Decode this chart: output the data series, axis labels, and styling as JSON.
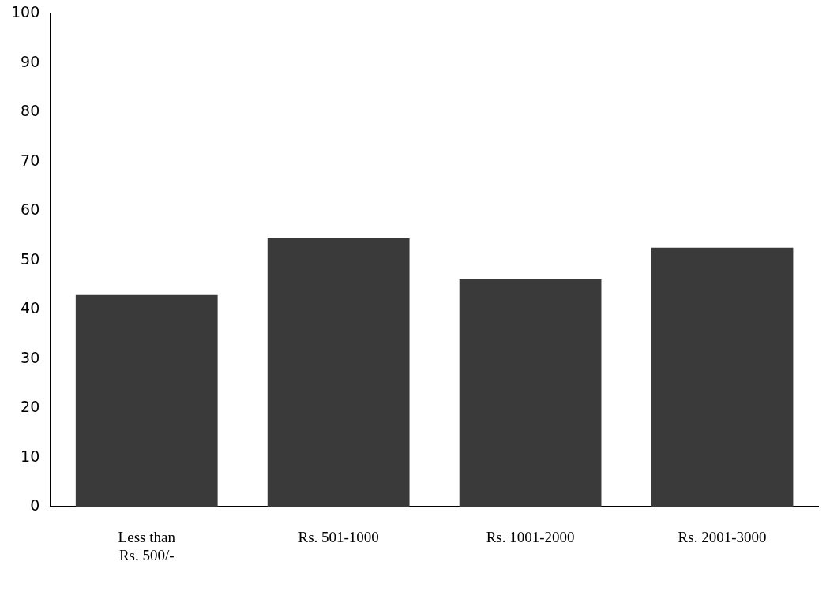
{
  "chart_data": {
    "type": "bar",
    "categories": [
      "Less than\nRs. 500/-",
      "Rs. 501-1000",
      "Rs. 1001-2000",
      "Rs. 2001-3000"
    ],
    "values": [
      43,
      54.5,
      46.2,
      52.6
    ],
    "color": "#3a3a3a",
    "ylim": [
      0,
      100
    ],
    "yticks": [
      0,
      10,
      20,
      30,
      40,
      50,
      60,
      70,
      80,
      90,
      100
    ],
    "grid": false,
    "legend": false
  }
}
